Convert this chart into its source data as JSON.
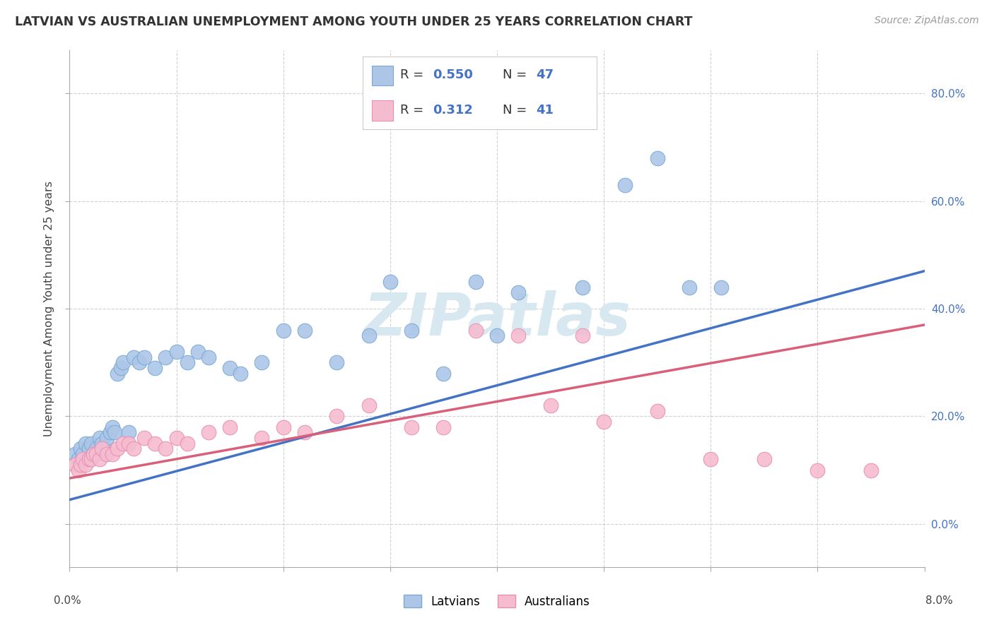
{
  "title": "LATVIAN VS AUSTRALIAN UNEMPLOYMENT AMONG YOUTH UNDER 25 YEARS CORRELATION CHART",
  "source": "Source: ZipAtlas.com",
  "ylabel": "Unemployment Among Youth under 25 years",
  "legend_latvians": "Latvians",
  "legend_australians": "Australians",
  "R_latvian": "0.550",
  "N_latvian": "47",
  "R_australian": "0.312",
  "N_australian": "41",
  "latvian_color": "#adc6e8",
  "latvian_edge": "#7aaad4",
  "australian_color": "#f5bcd0",
  "australian_edge": "#e890b0",
  "latvian_line_color": "#4472c4",
  "australian_line_color": "#d9607a",
  "watermark_color": "#d8e8f0",
  "xlim": [
    0.0,
    8.0
  ],
  "ylim": [
    -8.0,
    88.0
  ],
  "yticks": [
    0,
    20,
    40,
    60,
    80
  ],
  "ytick_labels": [
    "0.0%",
    "20.0%",
    "40.0%",
    "60.0%",
    "80.0%"
  ],
  "latvians_x": [
    0.05,
    0.08,
    0.1,
    0.12,
    0.15,
    0.18,
    0.2,
    0.22,
    0.25,
    0.28,
    0.3,
    0.32,
    0.35,
    0.38,
    0.4,
    0.42,
    0.45,
    0.48,
    0.5,
    0.55,
    0.6,
    0.65,
    0.7,
    0.8,
    0.9,
    1.0,
    1.1,
    1.2,
    1.3,
    1.5,
    1.6,
    1.8,
    2.0,
    2.2,
    2.5,
    2.8,
    3.0,
    3.2,
    3.5,
    4.0,
    4.2,
    4.8,
    5.2,
    5.5,
    5.8,
    6.1,
    3.8
  ],
  "latvians_y": [
    13,
    12,
    14,
    13,
    15,
    14,
    15,
    13,
    14,
    16,
    15,
    14,
    16,
    17,
    18,
    17,
    28,
    29,
    30,
    17,
    31,
    30,
    31,
    29,
    31,
    32,
    30,
    32,
    31,
    29,
    28,
    30,
    36,
    36,
    30,
    35,
    45,
    36,
    28,
    35,
    43,
    44,
    63,
    68,
    44,
    44,
    45
  ],
  "australians_x": [
    0.05,
    0.08,
    0.1,
    0.12,
    0.15,
    0.18,
    0.2,
    0.22,
    0.25,
    0.28,
    0.3,
    0.35,
    0.4,
    0.45,
    0.5,
    0.55,
    0.6,
    0.7,
    0.8,
    0.9,
    1.0,
    1.1,
    1.3,
    1.5,
    1.8,
    2.0,
    2.2,
    2.5,
    2.8,
    3.2,
    3.5,
    3.8,
    4.2,
    4.5,
    5.0,
    5.5,
    6.0,
    6.5,
    7.0,
    7.5,
    4.8
  ],
  "australians_y": [
    11,
    10,
    11,
    12,
    11,
    12,
    12,
    13,
    13,
    12,
    14,
    13,
    13,
    14,
    15,
    15,
    14,
    16,
    15,
    14,
    16,
    15,
    17,
    18,
    16,
    18,
    17,
    20,
    22,
    18,
    18,
    36,
    35,
    22,
    19,
    21,
    12,
    12,
    10,
    10,
    35
  ],
  "latvian_trend": [
    4.5,
    47.0
  ],
  "australian_trend": [
    8.5,
    37.0
  ]
}
